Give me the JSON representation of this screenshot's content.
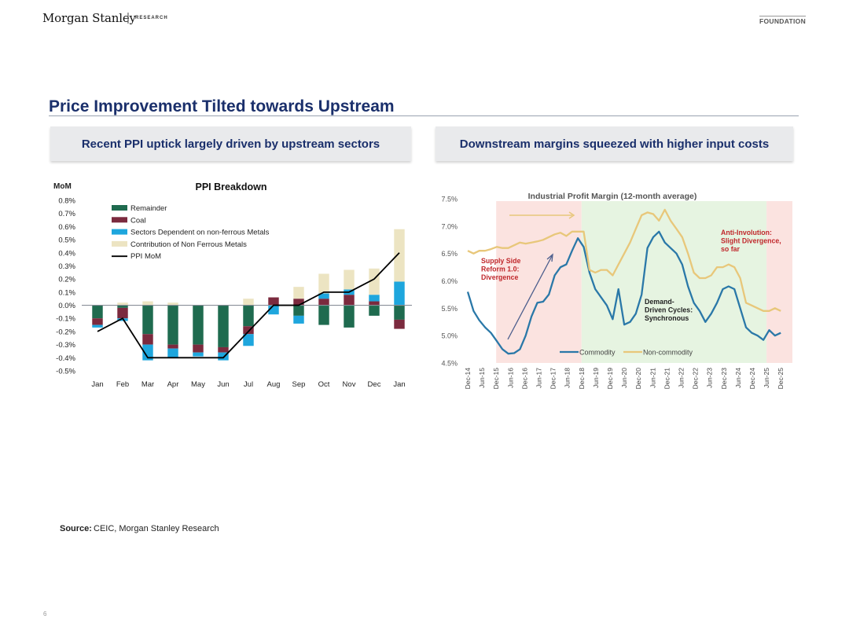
{
  "header": {
    "brand": "Morgan Stanley",
    "separator": "|",
    "brand_sub": "RESEARCH",
    "tag": "FOUNDATION"
  },
  "page_title": "Price Improvement Tilted towards Upstream",
  "left_panel": {
    "heading": "Recent PPI uptick largely driven by upstream sectors"
  },
  "right_panel": {
    "heading": "Downstream margins squeezed with higher input costs"
  },
  "source": {
    "label": "Source:",
    "text": "CEIC, Morgan Stanley Research"
  },
  "page_number": "6",
  "colors": {
    "remainder": "#1f6b4f",
    "coal": "#7b2a3e",
    "nonferrous_dep": "#1ea6dd",
    "contribution": "#ece4c2",
    "ppi_line": "#000000",
    "commodity": "#2a78a8",
    "non_commodity": "#e8c77a",
    "phase_red": "#fbe3e0",
    "phase_green": "#e6f4e1",
    "annotation_red": "#c0282c",
    "annotation_dark": "#222222",
    "heading_blue": "#1a2f6b"
  },
  "chart_data": [
    {
      "type": "bar",
      "stacked": true,
      "title": "PPI Breakdown",
      "ylabel": "MoM",
      "ylim": [
        -0.5,
        0.8
      ],
      "yticks": [
        "0.8%",
        "0.7%",
        "0.6%",
        "0.5%",
        "0.4%",
        "0.3%",
        "0.2%",
        "0.1%",
        "0.0%",
        "-0.1%",
        "-0.2%",
        "-0.3%",
        "-0.4%",
        "-0.5%"
      ],
      "categories": [
        "Jan",
        "Feb",
        "Mar",
        "Apr",
        "May",
        "Jun",
        "Jul",
        "Aug",
        "Sep",
        "Oct",
        "Nov",
        "Dec",
        "Jan"
      ],
      "series": [
        {
          "name": "Remainder",
          "values": [
            -0.1,
            -0.02,
            -0.22,
            -0.3,
            -0.3,
            -0.32,
            -0.16,
            0.0,
            -0.08,
            -0.15,
            -0.17,
            -0.08,
            -0.11
          ]
        },
        {
          "name": "Coal",
          "values": [
            -0.05,
            -0.08,
            -0.08,
            -0.03,
            -0.06,
            -0.04,
            -0.06,
            0.06,
            0.05,
            0.05,
            0.08,
            0.03,
            -0.07
          ]
        },
        {
          "name": "Sectors Dependent on non-ferrous Metals",
          "values": [
            -0.02,
            -0.02,
            -0.12,
            -0.07,
            -0.03,
            -0.06,
            -0.09,
            -0.07,
            -0.06,
            0.04,
            0.04,
            0.05,
            0.18
          ]
        },
        {
          "name": "Contribution of Non Ferrous Metals",
          "values": [
            0.0,
            0.02,
            0.03,
            0.02,
            0.0,
            0.0,
            0.05,
            0.0,
            0.09,
            0.15,
            0.15,
            0.2,
            0.4
          ]
        }
      ],
      "line": {
        "name": "PPI MoM",
        "values": [
          -0.2,
          -0.1,
          -0.4,
          -0.4,
          -0.4,
          -0.4,
          -0.2,
          0.0,
          0.0,
          0.1,
          0.1,
          0.2,
          0.4
        ]
      }
    },
    {
      "type": "line",
      "title": "Industrial Profit Margin (12-month average)",
      "ylim": [
        4.5,
        7.5
      ],
      "yticks": [
        "7.5%",
        "7.0%",
        "6.5%",
        "6.0%",
        "5.5%",
        "5.0%",
        "4.5%"
      ],
      "xticks": [
        "Dec-14",
        "Jun-15",
        "Dec-15",
        "Jun-16",
        "Dec-16",
        "Jun-17",
        "Dec-17",
        "Jun-18",
        "Dec-18",
        "Jun-19",
        "Dec-19",
        "Jun-20",
        "Dec-20",
        "Jun-21",
        "Dec-21",
        "Jun-22",
        "Dec-22",
        "Jun-23",
        "Dec-23",
        "Jun-24",
        "Dec-24",
        "Jun-25",
        "Dec-25"
      ],
      "series": [
        {
          "name": "Commodity",
          "values": [
            5.8,
            5.45,
            5.28,
            5.15,
            5.05,
            4.9,
            4.75,
            4.67,
            4.68,
            4.75,
            5.0,
            5.35,
            5.6,
            5.62,
            5.75,
            6.1,
            6.25,
            6.3,
            6.55,
            6.78,
            6.62,
            6.15,
            5.85,
            5.7,
            5.55,
            5.3,
            5.85,
            5.2,
            5.25,
            5.4,
            5.75,
            6.6,
            6.8,
            6.9,
            6.7,
            6.6,
            6.5,
            6.3,
            5.9,
            5.6,
            5.45,
            5.25,
            5.4,
            5.6,
            5.85,
            5.9,
            5.85,
            5.5,
            5.15,
            5.05,
            5.0,
            4.92,
            5.1,
            5.0,
            5.05
          ]
        },
        {
          "name": "Non-commodity",
          "values": [
            6.55,
            6.5,
            6.55,
            6.55,
            6.58,
            6.62,
            6.6,
            6.6,
            6.65,
            6.7,
            6.68,
            6.7,
            6.72,
            6.75,
            6.8,
            6.85,
            6.88,
            6.82,
            6.9,
            6.9,
            6.9,
            6.2,
            6.15,
            6.2,
            6.2,
            6.1,
            6.3,
            6.5,
            6.7,
            6.95,
            7.2,
            7.25,
            7.22,
            7.1,
            7.3,
            7.1,
            6.95,
            6.8,
            6.5,
            6.15,
            6.05,
            6.05,
            6.1,
            6.25,
            6.25,
            6.3,
            6.25,
            6.05,
            5.6,
            5.55,
            5.5,
            5.45,
            5.45,
            5.5,
            5.45
          ]
        }
      ],
      "phases": [
        {
          "label": "Supply Side Reform 1.0: Divergence",
          "from": "Dec-15",
          "to": "Dec-18",
          "color": "red"
        },
        {
          "label": "Demand-Driven Cycles: Synchronous",
          "from": "Dec-18",
          "to": "Jun-25",
          "color": "green"
        },
        {
          "label": "Anti-Involution: Slight Divergence, so far",
          "from": "Jun-25",
          "to": "Dec-25",
          "color": "red"
        }
      ]
    }
  ]
}
